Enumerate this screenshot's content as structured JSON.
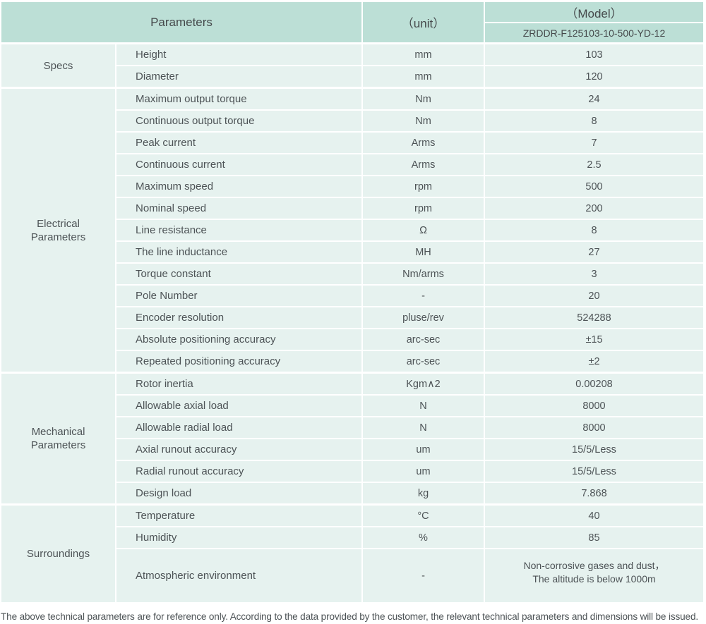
{
  "header": {
    "parameters_label": "Parameters",
    "unit_label": "（unit）",
    "model_label": "（Model）",
    "model_value": "ZRDDR-F125103-10-500-YD-12"
  },
  "sections": [
    {
      "category": "Specs",
      "rows": [
        {
          "name": "Height",
          "unit": "mm",
          "value": "103"
        },
        {
          "name": "Diameter",
          "unit": "mm",
          "value": "120"
        }
      ]
    },
    {
      "category": "Electrical Parameters",
      "rows": [
        {
          "name": "Maximum output torque",
          "unit": "Nm",
          "value": "24"
        },
        {
          "name": "Continuous output torque",
          "unit": "Nm",
          "value": "8"
        },
        {
          "name": "Peak current",
          "unit": "Arms",
          "value": "7"
        },
        {
          "name": "Continuous current",
          "unit": "Arms",
          "value": "2.5"
        },
        {
          "name": "Maximum speed",
          "unit": "rpm",
          "value": "500"
        },
        {
          "name": "Nominal speed",
          "unit": "rpm",
          "value": "200"
        },
        {
          "name": "Line resistance",
          "unit": "Ω",
          "value": "8"
        },
        {
          "name": "The line inductance",
          "unit": "MH",
          "value": "27"
        },
        {
          "name": "Torque constant",
          "unit": "Nm/arms",
          "value": "3"
        },
        {
          "name": "Pole Number",
          "unit": "-",
          "value": "20"
        },
        {
          "name": "Encoder resolution",
          "unit": "pluse/rev",
          "value": "524288"
        },
        {
          "name": "Absolute positioning accuracy",
          "unit": "arc-sec",
          "value": "±15"
        },
        {
          "name": "Repeated positioning accuracy",
          "unit": "arc-sec",
          "value": "±2"
        }
      ]
    },
    {
      "category": "Mechanical Parameters",
      "rows": [
        {
          "name": "Rotor inertia",
          "unit": "Kgm∧2",
          "value": "0.00208"
        },
        {
          "name": "Allowable axial load",
          "unit": "N",
          "value": "8000"
        },
        {
          "name": "Allowable radial load",
          "unit": "N",
          "value": "8000"
        },
        {
          "name": "Axial runout accuracy",
          "unit": "um",
          "value": "15/5/Less"
        },
        {
          "name": "Radial runout accuracy",
          "unit": "um",
          "value": "15/5/Less"
        },
        {
          "name": "Design load",
          "unit": "kg",
          "value": "7.868"
        }
      ]
    },
    {
      "category": "Surroundings",
      "rows": [
        {
          "name": "Temperature",
          "unit": "°C",
          "value": "40"
        },
        {
          "name": "Humidity",
          "unit": "%",
          "value": "85"
        },
        {
          "name": "Atmospheric environment",
          "unit": "-",
          "value": "Non-corrosive gases and dust，\nThe altitude is below 1000m"
        }
      ]
    }
  ],
  "footer_note": "The above technical parameters are for reference only. According to the data provided by the customer, the relevant technical parameters and dimensions will be issued.",
  "colors": {
    "header_bg": "#bcdfd6",
    "row_bg": "#e6f2ef",
    "grid": "#ffffff",
    "text": "#4d5356"
  }
}
